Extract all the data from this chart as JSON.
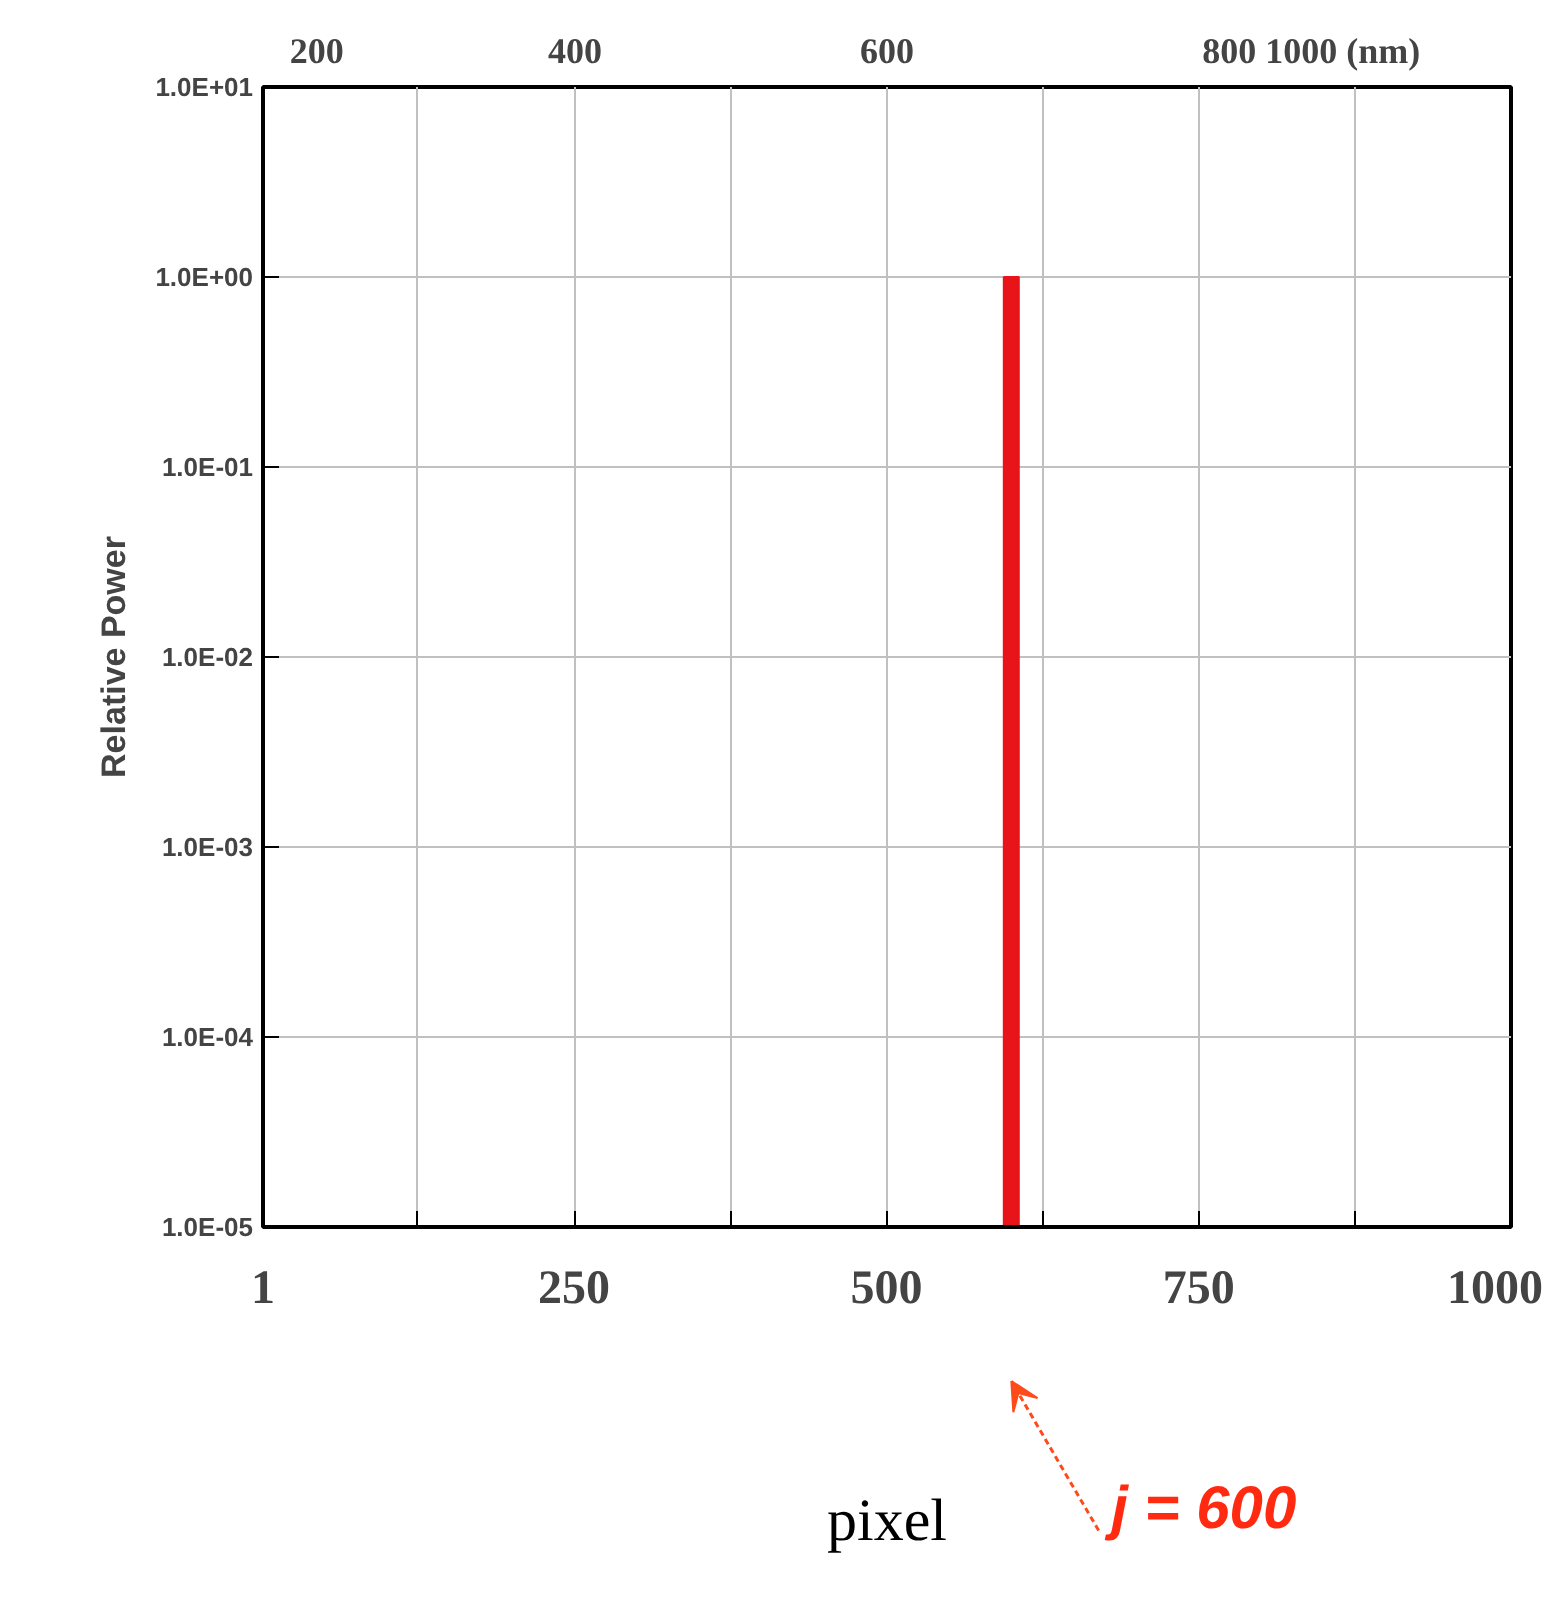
{
  "chart_data": {
    "type": "bar",
    "xlabel": "pixel",
    "ylabel": "Relative Power",
    "log": "y",
    "grid": true,
    "x": [
      600
    ],
    "values": [
      1
    ],
    "color": "#e8141a",
    "xlim": [
      1,
      1000
    ],
    "xticks": [
      1,
      {
        "value": 125,
        "label": null
      },
      250,
      {
        "value": 375,
        "label": null
      },
      500,
      {
        "value": 625,
        "label": null
      },
      750,
      {
        "value": 875,
        "label": null
      },
      1000
    ],
    "ylim": [
      1e-05,
      10
    ],
    "yticks": [
      {
        "value": 1e-05,
        "label": "1.0E-05"
      },
      {
        "value": 0.0001,
        "label": "1.0E-04"
      },
      {
        "value": 0.001,
        "label": "1.0E-03"
      },
      {
        "value": 0.01,
        "label": "1.0E-02"
      },
      {
        "value": 0.1,
        "label": "1.0E-01"
      },
      {
        "value": 1,
        "label": "1.0E+00"
      },
      {
        "value": 10,
        "label": "1.0E+01"
      }
    ],
    "annotations": [
      "200",
      "400",
      "600",
      "800 1000 (nm)",
      "j = 600"
    ]
  }
}
